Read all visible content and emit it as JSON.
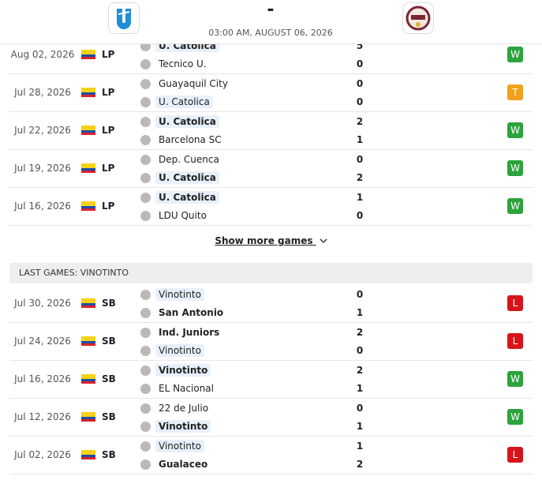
{
  "header": {
    "score": "-",
    "datetime": "03:00 AM, AUGUST 06, 2026"
  },
  "sections": [
    {
      "focus": "U. Catolica",
      "show_more": "Show more games",
      "games": [
        {
          "date": "Aug 02, 2026",
          "league": "LP",
          "home": "U. Catolica",
          "away": "Tecnico U.",
          "home_score": 5,
          "away_score": 0,
          "result": "W",
          "result_color": "#2ca33c"
        },
        {
          "date": "Jul 28, 2026",
          "league": "LP",
          "home": "Guayaquil City",
          "away": "U. Catolica",
          "home_score": 0,
          "away_score": 0,
          "result": "T",
          "result_color": "#f2a11c"
        },
        {
          "date": "Jul 22, 2026",
          "league": "LP",
          "home": "U. Catolica",
          "away": "Barcelona SC",
          "home_score": 2,
          "away_score": 1,
          "result": "W",
          "result_color": "#2ca33c"
        },
        {
          "date": "Jul 19, 2026",
          "league": "LP",
          "home": "Dep. Cuenca",
          "away": "U. Catolica",
          "home_score": 0,
          "away_score": 2,
          "result": "W",
          "result_color": "#2ca33c"
        },
        {
          "date": "Jul 16, 2026",
          "league": "LP",
          "home": "U. Catolica",
          "away": "LDU Quito",
          "home_score": 1,
          "away_score": 0,
          "result": "W",
          "result_color": "#2ca33c"
        }
      ]
    },
    {
      "title": "LAST GAMES: VINOTINTO",
      "focus": "Vinotinto",
      "games": [
        {
          "date": "Jul 30, 2026",
          "league": "SB",
          "home": "Vinotinto",
          "away": "San Antonio",
          "home_score": 0,
          "away_score": 1,
          "result": "L",
          "result_color": "#d6151b"
        },
        {
          "date": "Jul 24, 2026",
          "league": "SB",
          "home": "Ind. Juniors",
          "away": "Vinotinto",
          "home_score": 2,
          "away_score": 0,
          "result": "L",
          "result_color": "#d6151b"
        },
        {
          "date": "Jul 16, 2026",
          "league": "SB",
          "home": "Vinotinto",
          "away": "EL Nacional",
          "home_score": 2,
          "away_score": 1,
          "result": "W",
          "result_color": "#2ca33c"
        },
        {
          "date": "Jul 12, 2026",
          "league": "SB",
          "home": "22 de Julio",
          "away": "Vinotinto",
          "home_score": 0,
          "away_score": 1,
          "result": "W",
          "result_color": "#2ca33c"
        },
        {
          "date": "Jul 02, 2026",
          "league": "SB",
          "home": "Vinotinto",
          "away": "Gualaceo",
          "home_score": 1,
          "away_score": 2,
          "result": "L",
          "result_color": "#d6151b"
        }
      ]
    }
  ]
}
